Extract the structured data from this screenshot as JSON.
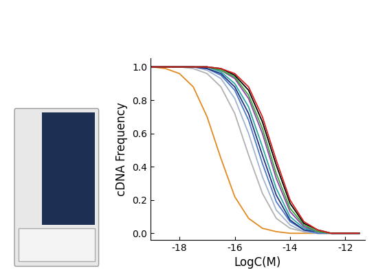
{
  "chart_data": {
    "type": "line",
    "x_label": "LogC(M)",
    "y_label": "cDNA Frequency",
    "x": [
      -19,
      -18.5,
      -18,
      -17.5,
      -17,
      -16.5,
      -16,
      -15.5,
      -15,
      -14.5,
      -14,
      -13.5,
      -13,
      -12.5,
      -12,
      -11.5
    ],
    "series": [
      {
        "color": "#e08a1e",
        "values": [
          1.0,
          0.99,
          0.96,
          0.88,
          0.7,
          0.45,
          0.22,
          0.09,
          0.03,
          0.01,
          0.0,
          0.0,
          0.0,
          0.0,
          0.0,
          0.0
        ]
      },
      {
        "color": "#b0b0b0",
        "values": [
          1.0,
          1.0,
          1.0,
          0.99,
          0.96,
          0.88,
          0.72,
          0.47,
          0.24,
          0.09,
          0.03,
          0.01,
          0.0,
          0.0,
          0.0,
          0.0
        ]
      },
      {
        "color": "#9fb3d0",
        "values": [
          1.0,
          1.0,
          1.0,
          1.0,
          0.98,
          0.93,
          0.81,
          0.6,
          0.34,
          0.14,
          0.05,
          0.01,
          0.0,
          0.0,
          0.0,
          0.0
        ]
      },
      {
        "color": "#4a78c8",
        "values": [
          1.0,
          1.0,
          1.0,
          1.0,
          0.99,
          0.95,
          0.86,
          0.68,
          0.42,
          0.19,
          0.07,
          0.02,
          0.0,
          0.0,
          0.0,
          0.0
        ]
      },
      {
        "color": "#1f2f80",
        "values": [
          1.0,
          1.0,
          1.0,
          1.0,
          0.99,
          0.96,
          0.88,
          0.72,
          0.47,
          0.23,
          0.08,
          0.02,
          0.01,
          0.0,
          0.0,
          0.0
        ]
      },
      {
        "color": "#2aa6a0",
        "values": [
          1.0,
          1.0,
          1.0,
          1.0,
          1.0,
          0.97,
          0.9,
          0.76,
          0.52,
          0.27,
          0.1,
          0.03,
          0.01,
          0.0,
          0.0,
          0.0
        ]
      },
      {
        "color": "#8a3fa8",
        "values": [
          1.0,
          1.0,
          1.0,
          1.0,
          1.0,
          0.98,
          0.93,
          0.81,
          0.6,
          0.33,
          0.13,
          0.04,
          0.01,
          0.0,
          0.0,
          0.0
        ]
      },
      {
        "color": "#3aa83a",
        "values": [
          1.0,
          1.0,
          1.0,
          1.0,
          1.0,
          0.98,
          0.94,
          0.83,
          0.63,
          0.36,
          0.15,
          0.05,
          0.01,
          0.0,
          0.0,
          0.0
        ]
      },
      {
        "color": "#000000",
        "values": [
          1.0,
          1.0,
          1.0,
          1.0,
          1.0,
          0.99,
          0.95,
          0.86,
          0.67,
          0.41,
          0.18,
          0.06,
          0.02,
          0.0,
          0.0,
          0.0
        ]
      },
      {
        "color": "#d62020",
        "values": [
          1.0,
          1.0,
          1.0,
          1.0,
          1.0,
          0.99,
          0.96,
          0.88,
          0.7,
          0.44,
          0.2,
          0.07,
          0.02,
          0.0,
          0.0,
          0.0
        ]
      }
    ],
    "xlim": [
      -19.05,
      -11.3
    ],
    "xticks": [
      -18,
      -16,
      -14,
      -12
    ],
    "ylim": [
      -0.04,
      1.05
    ],
    "yticks": [
      0.0,
      0.2,
      0.4,
      0.6,
      0.8,
      1.0
    ],
    "grid": false
  }
}
